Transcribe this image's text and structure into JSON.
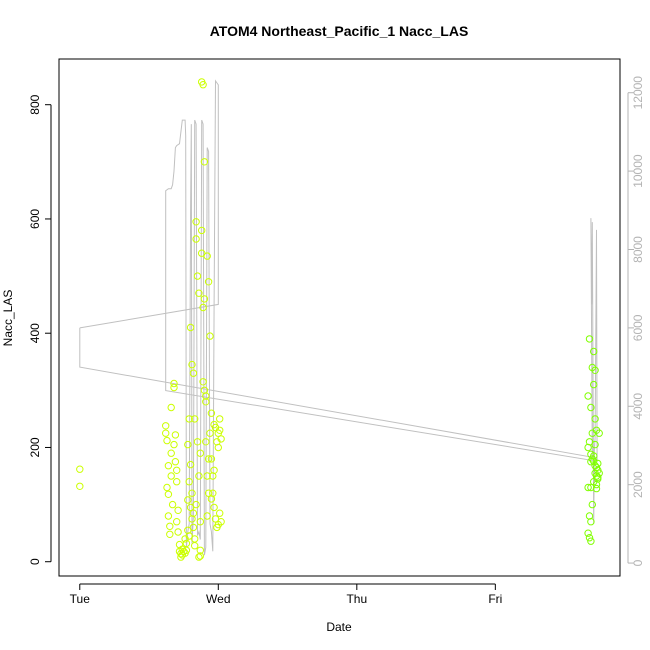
{
  "chart_data": {
    "type": "scatter",
    "title": "ATOM4 Northeast_Pacific_1 Nacc_LAS",
    "xlabel": "Date",
    "ylabel": "Nacc_LAS",
    "x_ticks": [
      "Tue",
      "Wed",
      "Thu",
      "Fri"
    ],
    "y_ticks_left": [
      "0",
      "200",
      "400",
      "600",
      "800"
    ],
    "y_ticks_right": [
      "0",
      "2000",
      "4000",
      "6000",
      "8000",
      "10000",
      "12000"
    ],
    "xlim_days": [
      -0.15,
      3.9
    ],
    "ylim_left": [
      -25,
      880
    ],
    "ylim_right": [
      -330,
      12860
    ],
    "grid": false,
    "colors": {
      "early": "#ccff00",
      "late": "#80ff00",
      "line": "#c0c0c0",
      "right_axis": "#b3b3b3",
      "box": "#000000"
    },
    "series": [
      {
        "type": "scatter",
        "points": [
          [
            0.0,
            162
          ],
          [
            0.0,
            132
          ],
          [
            0.62,
            238
          ],
          [
            0.62,
            225
          ],
          [
            0.63,
            212
          ],
          [
            0.64,
            168
          ],
          [
            0.63,
            130
          ],
          [
            0.64,
            118
          ],
          [
            0.64,
            80
          ],
          [
            0.65,
            62
          ],
          [
            0.65,
            48
          ],
          [
            0.66,
            190
          ],
          [
            0.66,
            150
          ],
          [
            0.67,
            100
          ],
          [
            0.66,
            270
          ],
          [
            0.68,
            312
          ],
          [
            0.68,
            305
          ],
          [
            0.69,
            222
          ],
          [
            0.68,
            205
          ],
          [
            0.69,
            175
          ],
          [
            0.7,
            160
          ],
          [
            0.7,
            140
          ],
          [
            0.71,
            90
          ],
          [
            0.7,
            70
          ],
          [
            0.71,
            52
          ],
          [
            0.72,
            30
          ],
          [
            0.72,
            18
          ],
          [
            0.73,
            8
          ],
          [
            0.73,
            14
          ],
          [
            0.74,
            12
          ],
          [
            0.74,
            22
          ],
          [
            0.75,
            18
          ],
          [
            0.76,
            15
          ],
          [
            0.77,
            20
          ],
          [
            0.76,
            40
          ],
          [
            0.77,
            32
          ],
          [
            0.78,
            55
          ],
          [
            0.79,
            45
          ],
          [
            0.78,
            108
          ],
          [
            0.79,
            140
          ],
          [
            0.78,
            205
          ],
          [
            0.79,
            250
          ],
          [
            0.8,
            170
          ],
          [
            0.8,
            95
          ],
          [
            0.81,
            75
          ],
          [
            0.8,
            410
          ],
          [
            0.81,
            345
          ],
          [
            0.82,
            330
          ],
          [
            0.83,
            250
          ],
          [
            0.81,
            120
          ],
          [
            0.82,
            60
          ],
          [
            0.83,
            40
          ],
          [
            0.83,
            28
          ],
          [
            0.84,
            595
          ],
          [
            0.84,
            565
          ],
          [
            0.85,
            500
          ],
          [
            0.86,
            470
          ],
          [
            0.85,
            210
          ],
          [
            0.86,
            150
          ],
          [
            0.87,
            70
          ],
          [
            0.87,
            20
          ],
          [
            0.87,
            10
          ],
          [
            0.86,
            8
          ],
          [
            0.88,
            580
          ],
          [
            0.88,
            540
          ],
          [
            0.89,
            445
          ],
          [
            0.9,
            460
          ],
          [
            0.89,
            315
          ],
          [
            0.9,
            300
          ],
          [
            0.91,
            290
          ],
          [
            0.88,
            840
          ],
          [
            0.89,
            835
          ],
          [
            0.9,
            700
          ],
          [
            0.92,
            535
          ],
          [
            0.93,
            490
          ],
          [
            0.91,
            280
          ],
          [
            0.91,
            210
          ],
          [
            0.92,
            150
          ],
          [
            0.93,
            120
          ],
          [
            0.92,
            80
          ],
          [
            0.94,
            395
          ],
          [
            0.94,
            225
          ],
          [
            0.95,
            180
          ],
          [
            0.96,
            150
          ],
          [
            0.97,
            240
          ],
          [
            0.98,
            235
          ],
          [
            0.99,
            210
          ],
          [
            1.0,
            200
          ],
          [
            0.96,
            120
          ],
          [
            0.97,
            95
          ],
          [
            0.98,
            75
          ],
          [
            0.99,
            60
          ],
          [
            1.0,
            65
          ],
          [
            1.01,
            250
          ],
          [
            1.01,
            230
          ],
          [
            1.02,
            215
          ],
          [
            1.02,
            70
          ],
          [
            1.01,
            85
          ],
          [
            0.93,
            180
          ],
          [
            0.95,
            260
          ],
          [
            0.87,
            190
          ],
          [
            0.84,
            100
          ],
          [
            0.82,
            85
          ],
          [
            0.95,
            110
          ],
          [
            0.97,
            160
          ],
          [
            1.0,
            225
          ],
          [
            3.68,
            390
          ],
          [
            3.67,
            290
          ],
          [
            3.69,
            270
          ],
          [
            3.7,
            340
          ],
          [
            3.71,
            368
          ],
          [
            3.72,
            335
          ],
          [
            3.71,
            310
          ],
          [
            3.72,
            250
          ],
          [
            3.73,
            230
          ],
          [
            3.7,
            225
          ],
          [
            3.68,
            210
          ],
          [
            3.67,
            200
          ],
          [
            3.69,
            188
          ],
          [
            3.7,
            180
          ],
          [
            3.71,
            176
          ],
          [
            3.72,
            168
          ],
          [
            3.73,
            165
          ],
          [
            3.74,
            160
          ],
          [
            3.72,
            155
          ],
          [
            3.73,
            150
          ],
          [
            3.74,
            145
          ],
          [
            3.71,
            140
          ],
          [
            3.73,
            135
          ],
          [
            3.69,
            130
          ],
          [
            3.67,
            130
          ],
          [
            3.7,
            100
          ],
          [
            3.68,
            80
          ],
          [
            3.69,
            70
          ],
          [
            3.67,
            50
          ],
          [
            3.68,
            42
          ],
          [
            3.69,
            36
          ],
          [
            3.75,
            225
          ],
          [
            3.74,
            172
          ],
          [
            3.75,
            155
          ],
          [
            3.74,
            148
          ],
          [
            3.72,
            205
          ],
          [
            3.69,
            175
          ],
          [
            3.71,
            185
          ],
          [
            3.73,
            128
          ]
        ]
      },
      {
        "type": "line",
        "axis": "right",
        "points": [
          [
            0.0,
            6000
          ],
          [
            0.0,
            5000
          ],
          [
            3.7,
            2700
          ],
          [
            3.69,
            8800
          ],
          [
            3.695,
            6600
          ],
          [
            3.7,
            8700
          ],
          [
            3.71,
            1000
          ],
          [
            3.715,
            2900
          ],
          [
            3.72,
            3200
          ],
          [
            3.73,
            8500
          ],
          [
            3.735,
            2600
          ],
          [
            0.62,
            4400
          ],
          [
            0.62,
            9500
          ],
          [
            0.64,
            9550
          ],
          [
            0.66,
            9550
          ],
          [
            0.67,
            9650
          ],
          [
            0.68,
            10000
          ],
          [
            0.69,
            10600
          ],
          [
            0.7,
            10650
          ],
          [
            0.72,
            10700
          ],
          [
            0.74,
            11300
          ],
          [
            0.76,
            11300
          ],
          [
            0.765,
            10900
          ],
          [
            0.77,
            400
          ],
          [
            0.78,
            800
          ],
          [
            0.79,
            1000
          ],
          [
            0.8,
            9000
          ],
          [
            0.805,
            11200
          ],
          [
            0.81,
            500
          ],
          [
            0.82,
            1200
          ],
          [
            0.83,
            11300
          ],
          [
            0.84,
            11200
          ],
          [
            0.85,
            700
          ],
          [
            0.86,
            800
          ],
          [
            0.87,
            600
          ],
          [
            0.88,
            11300
          ],
          [
            0.89,
            11200
          ],
          [
            0.9,
            200
          ],
          [
            0.91,
            400
          ],
          [
            0.92,
            10600
          ],
          [
            0.93,
            10500
          ],
          [
            0.94,
            1000
          ],
          [
            0.95,
            800
          ],
          [
            0.96,
            300
          ],
          [
            0.97,
            6600
          ],
          [
            0.98,
            12300
          ],
          [
            1.0,
            12200
          ],
          [
            1.0,
            6600
          ],
          [
            0.0,
            6000
          ]
        ]
      }
    ]
  }
}
